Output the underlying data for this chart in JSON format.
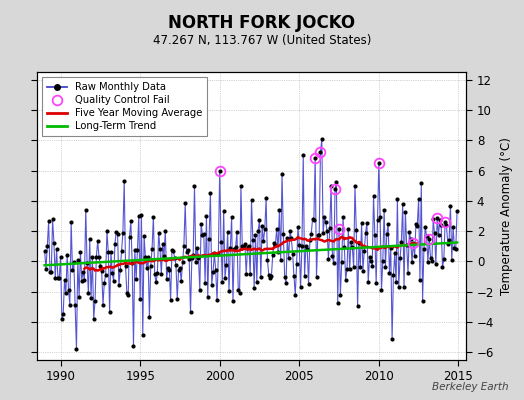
{
  "title": "NORTH FORK JOCKO",
  "subtitle": "47.267 N, 113.767 W (United States)",
  "ylabel": "Temperature Anomaly (°C)",
  "watermark": "Berkeley Earth",
  "ylim": [
    -6.5,
    12.5
  ],
  "yticks": [
    -6,
    -4,
    -2,
    0,
    2,
    4,
    6,
    8,
    10,
    12
  ],
  "xlim": [
    1988.5,
    2015.5
  ],
  "xticks": [
    1990,
    1995,
    2000,
    2005,
    2010,
    2015
  ],
  "bg_color": "#d8d8d8",
  "plot_bg_color": "#ffffff",
  "raw_line_color": "#4444cc",
  "raw_marker_color": "#000000",
  "qc_fail_color": "#ff44ff",
  "moving_avg_color": "#dd0000",
  "trend_color": "#00bb00",
  "seed": 42,
  "n_years": 26,
  "start_year": 1989,
  "trend_slope": 0.058,
  "trend_intercept": -0.25
}
